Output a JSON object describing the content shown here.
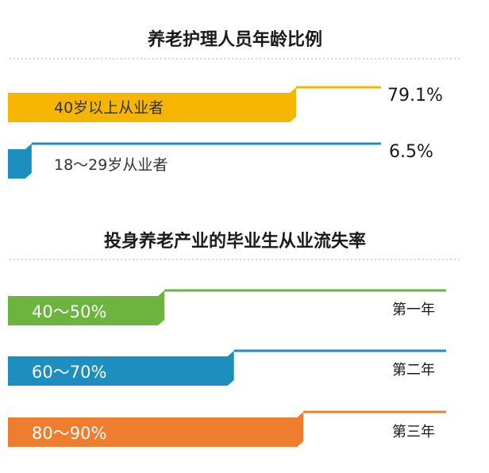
{
  "colors": {
    "background": "#ffffff",
    "title_text": "#1a1a1a",
    "divider": "#c8c8c8",
    "yellow": "#f5b500",
    "blue": "#1d8fbf",
    "green": "#6cb33f",
    "orange": "#ee7d2e"
  },
  "chart_data": [
    {
      "type": "bar",
      "title": "养老护理人员年龄比例",
      "categories": [
        "40岁以上从业者",
        "18～29岁从业者"
      ],
      "values": [
        79.1,
        6.5
      ],
      "value_labels": [
        "79.1%",
        "6.5%"
      ],
      "unit": "%",
      "colors": [
        "#f5b500",
        "#1d8fbf"
      ],
      "xlim": [
        0,
        100
      ],
      "grid": false,
      "legend": "none"
    },
    {
      "type": "bar",
      "title": "投身养老产业的毕业生从业流失率",
      "categories": [
        "第一年",
        "第二年",
        "第三年"
      ],
      "ranges": [
        [
          40,
          50
        ],
        [
          60,
          70
        ],
        [
          80,
          90
        ]
      ],
      "range_labels": [
        "40～50%",
        "60～70%",
        "80～90%"
      ],
      "unit": "%",
      "colors": [
        "#6cb33f",
        "#1d8fbf",
        "#ee7d2e"
      ],
      "xlim": [
        0,
        100
      ],
      "grid": false,
      "legend": "none"
    }
  ]
}
